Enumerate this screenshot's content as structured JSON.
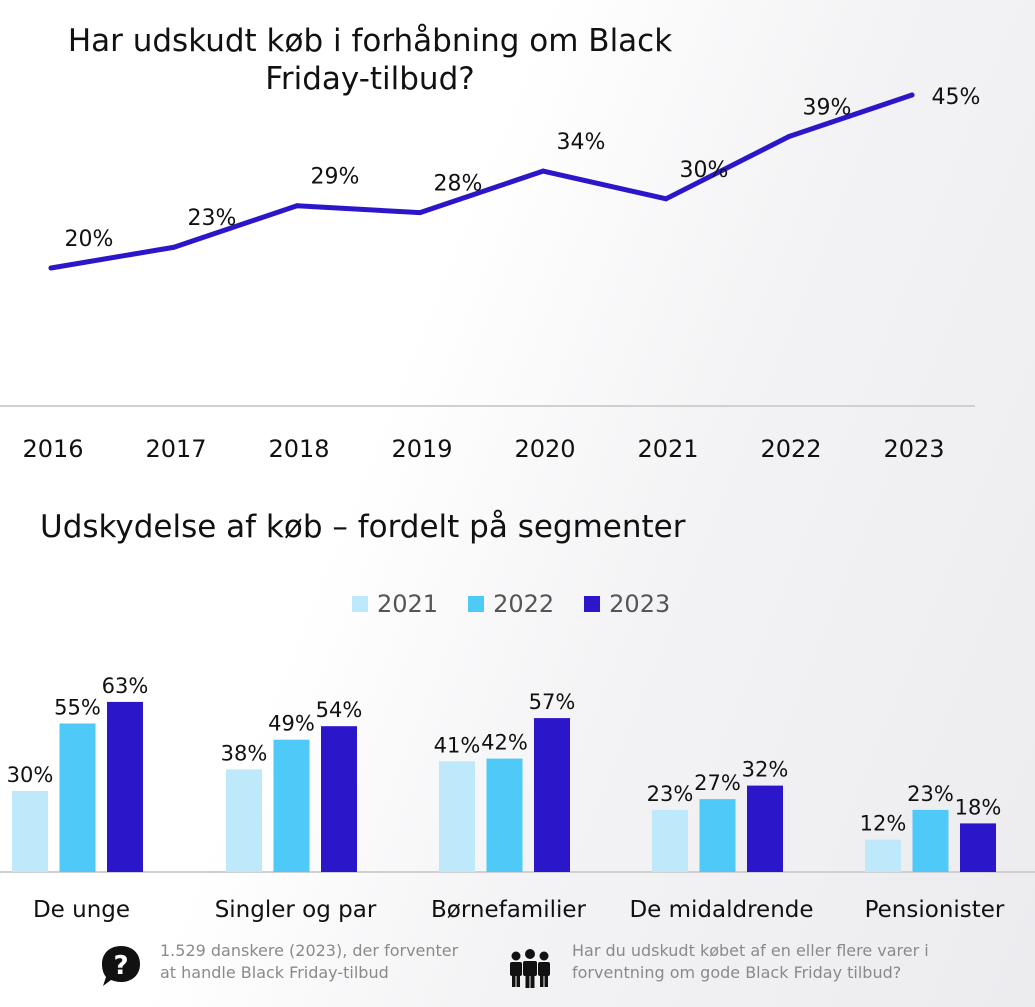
{
  "line_title": "Har udskudt køb i forhåbning om Black Friday-tilbud?",
  "bar_title": "Udskydelse af køb – fordelt på segmenter",
  "footer": {
    "respondents_text": "1.529 danskere (2023), der forventer at handle Black Friday-tilbud",
    "respondents_icon": "question-speech-bubble-icon",
    "question_text": "Har du udskudt købet af en eller flere varer i forventning om gode Black Friday tilbud?",
    "question_icon": "people-group-icon"
  },
  "chart_data": [
    {
      "type": "line",
      "title": "Har udskudt køb i forhåbning om Black Friday-tilbud?",
      "x": [
        "2016",
        "2017",
        "2018",
        "2019",
        "2020",
        "2021",
        "2022",
        "2023"
      ],
      "series": [
        {
          "values": [
            20,
            23,
            29,
            28,
            34,
            30,
            39,
            45
          ],
          "labels": [
            "20%",
            "23%",
            "29%",
            "28%",
            "34%",
            "30%",
            "39%",
            "45%"
          ],
          "color": "#2b17c9"
        }
      ],
      "ylim": [
        0,
        50
      ],
      "grid": false
    },
    {
      "type": "bar",
      "title": "Udskydelse af køb – fordelt på segmenter",
      "categories": [
        "De unge",
        "Singler og par",
        "Børnefamilier",
        "De midaldrende",
        "Pensionister"
      ],
      "legend_position": "top-center",
      "ylim": [
        0,
        70
      ],
      "series": [
        {
          "name": "2021",
          "color": "#bde9fb",
          "values": [
            30,
            38,
            41,
            23,
            12
          ],
          "labels": [
            "30%",
            "38%",
            "41%",
            "23%",
            "12%"
          ]
        },
        {
          "name": "2022",
          "color": "#4fc9f8",
          "values": [
            55,
            49,
            42,
            27,
            23
          ],
          "labels": [
            "55%",
            "49%",
            "42%",
            "27%",
            "23%"
          ]
        },
        {
          "name": "2023",
          "color": "#2b17c9",
          "values": [
            63,
            54,
            57,
            32,
            18
          ],
          "labels": [
            "63%",
            "54%",
            "57%",
            "32%",
            "18%"
          ]
        }
      ]
    }
  ]
}
